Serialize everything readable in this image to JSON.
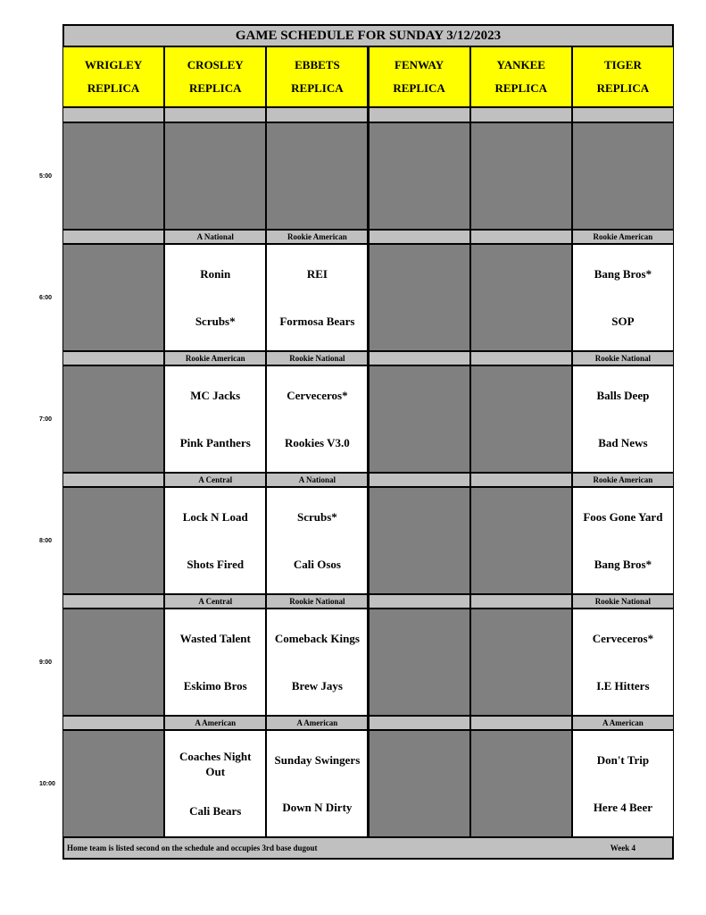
{
  "title": "GAME SCHEDULE FOR SUNDAY 3/12/2023",
  "fields": [
    {
      "line1": "WRIGLEY",
      "line2": "REPLICA"
    },
    {
      "line1": "CROSLEY",
      "line2": "REPLICA"
    },
    {
      "line1": "EBBETS",
      "line2": "REPLICA"
    },
    {
      "line1": "FENWAY",
      "line2": "REPLICA"
    },
    {
      "line1": "YANKEE",
      "line2": "REPLICA"
    },
    {
      "line1": "TIGER",
      "line2": "REPLICA"
    }
  ],
  "slots": [
    {
      "time": "5:00",
      "games": [
        null,
        null,
        null,
        null,
        null,
        null
      ]
    },
    {
      "time": "6:00",
      "games": [
        null,
        {
          "division": "A National",
          "away": "Ronin",
          "home": "Scrubs*"
        },
        {
          "division": "Rookie American",
          "away": "REI",
          "home": "Formosa Bears"
        },
        null,
        null,
        {
          "division": "Rookie American",
          "away": "Bang Bros*",
          "home": "SOP"
        }
      ]
    },
    {
      "time": "7:00",
      "games": [
        null,
        {
          "division": "Rookie American",
          "away": "MC Jacks",
          "home": "Pink Panthers"
        },
        {
          "division": "Rookie National",
          "away": "Cerveceros*",
          "home": "Rookies V3.0"
        },
        null,
        null,
        {
          "division": "Rookie National",
          "away": "Balls Deep",
          "home": "Bad News"
        }
      ]
    },
    {
      "time": "8:00",
      "games": [
        null,
        {
          "division": "A Central",
          "away": "Lock N Load",
          "home": "Shots Fired"
        },
        {
          "division": "A National",
          "away": "Scrubs*",
          "home": "Cali Osos"
        },
        null,
        null,
        {
          "division": "Rookie American",
          "away": "Foos Gone Yard",
          "home": "Bang Bros*"
        }
      ]
    },
    {
      "time": "9:00",
      "games": [
        null,
        {
          "division": "A Central",
          "away": "Wasted Talent",
          "home": "Eskimo Bros"
        },
        {
          "division": "Rookie National",
          "away": "Comeback Kings",
          "home": "Brew Jays"
        },
        null,
        null,
        {
          "division": "Rookie National",
          "away": "Cerveceros*",
          "home": "I.E Hitters"
        }
      ]
    },
    {
      "time": "10:00",
      "games": [
        null,
        {
          "division": "A American",
          "away": "Coaches Night Out",
          "home": "Cali Bears"
        },
        {
          "division": "A American",
          "away": "Sunday Swingers",
          "home": "Down N Dirty"
        },
        null,
        null,
        {
          "division": "A American",
          "away": "Don't Trip",
          "home": "Here 4 Beer"
        }
      ]
    }
  ],
  "footer": {
    "note": "Home team is listed second on the schedule and occupies 3rd base dugout",
    "week": "Week 4"
  },
  "colors": {
    "header": "#ffff00",
    "label_row": "#c0c0c0",
    "empty_slot": "#808080",
    "game_slot": "#ffffff"
  }
}
